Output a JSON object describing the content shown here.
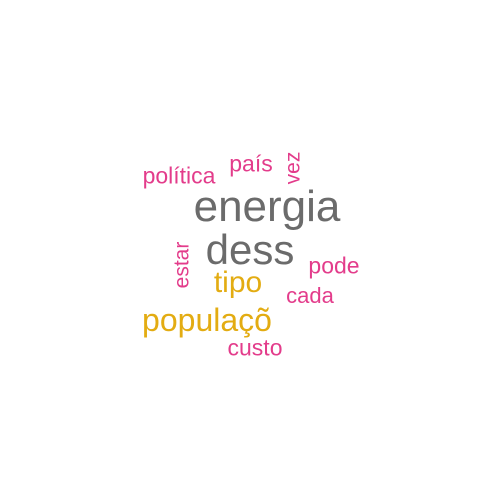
{
  "word_cloud": {
    "colors": {
      "gray": "#6b6b6b",
      "gold": "#e3ac12",
      "pink": "#e33c8b"
    },
    "words": [
      {
        "key": "energia",
        "text": "energia",
        "color": "gray",
        "weight": 5
      },
      {
        "key": "dess",
        "text": "dess",
        "color": "gray",
        "weight": 5
      },
      {
        "key": "populacao",
        "text": "populaçõ",
        "color": "gold",
        "weight": 3
      },
      {
        "key": "tipo",
        "text": "tipo",
        "color": "gold",
        "weight": 3
      },
      {
        "key": "politica",
        "text": "política",
        "color": "pink",
        "weight": 2
      },
      {
        "key": "pais",
        "text": "país",
        "color": "pink",
        "weight": 2
      },
      {
        "key": "vez",
        "text": "vez",
        "color": "pink",
        "weight": 2
      },
      {
        "key": "pode",
        "text": "pode",
        "color": "pink",
        "weight": 2
      },
      {
        "key": "cada",
        "text": "cada",
        "color": "pink",
        "weight": 2
      },
      {
        "key": "estar",
        "text": "estar",
        "color": "pink",
        "weight": 2
      },
      {
        "key": "custo",
        "text": "custo",
        "color": "pink",
        "weight": 2
      }
    ]
  }
}
